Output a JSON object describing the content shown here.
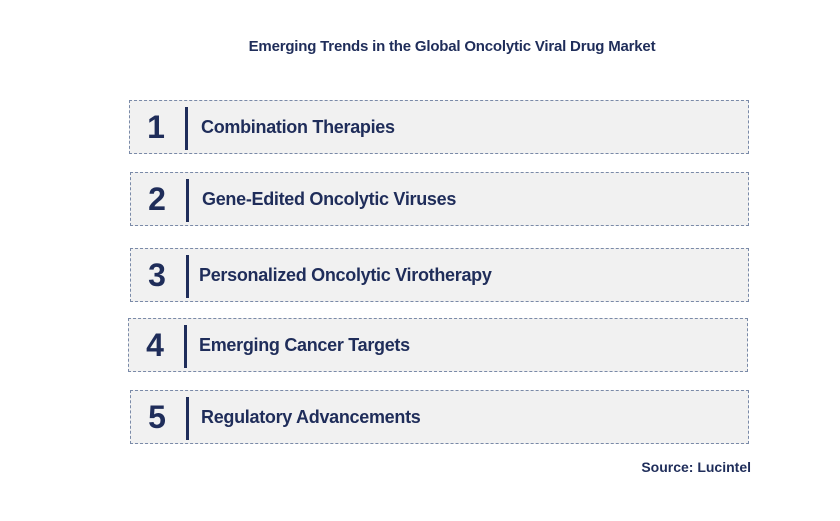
{
  "title": "Emerging Trends in the Global Oncolytic Viral Drug Market",
  "trends": [
    {
      "number": "1",
      "label": "Combination Therapies"
    },
    {
      "number": "2",
      "label": "Gene-Edited Oncolytic Viruses"
    },
    {
      "number": "3",
      "label": "Personalized Oncolytic Virotherapy"
    },
    {
      "number": "4",
      "label": "Emerging Cancer Targets"
    },
    {
      "number": "5",
      "label": "Regulatory Advancements"
    }
  ],
  "source": "Source: Lucintel",
  "colors": {
    "text": "#1f2d5a",
    "box_fill": "#f1f1f1",
    "box_border": "#7a8aa8"
  }
}
